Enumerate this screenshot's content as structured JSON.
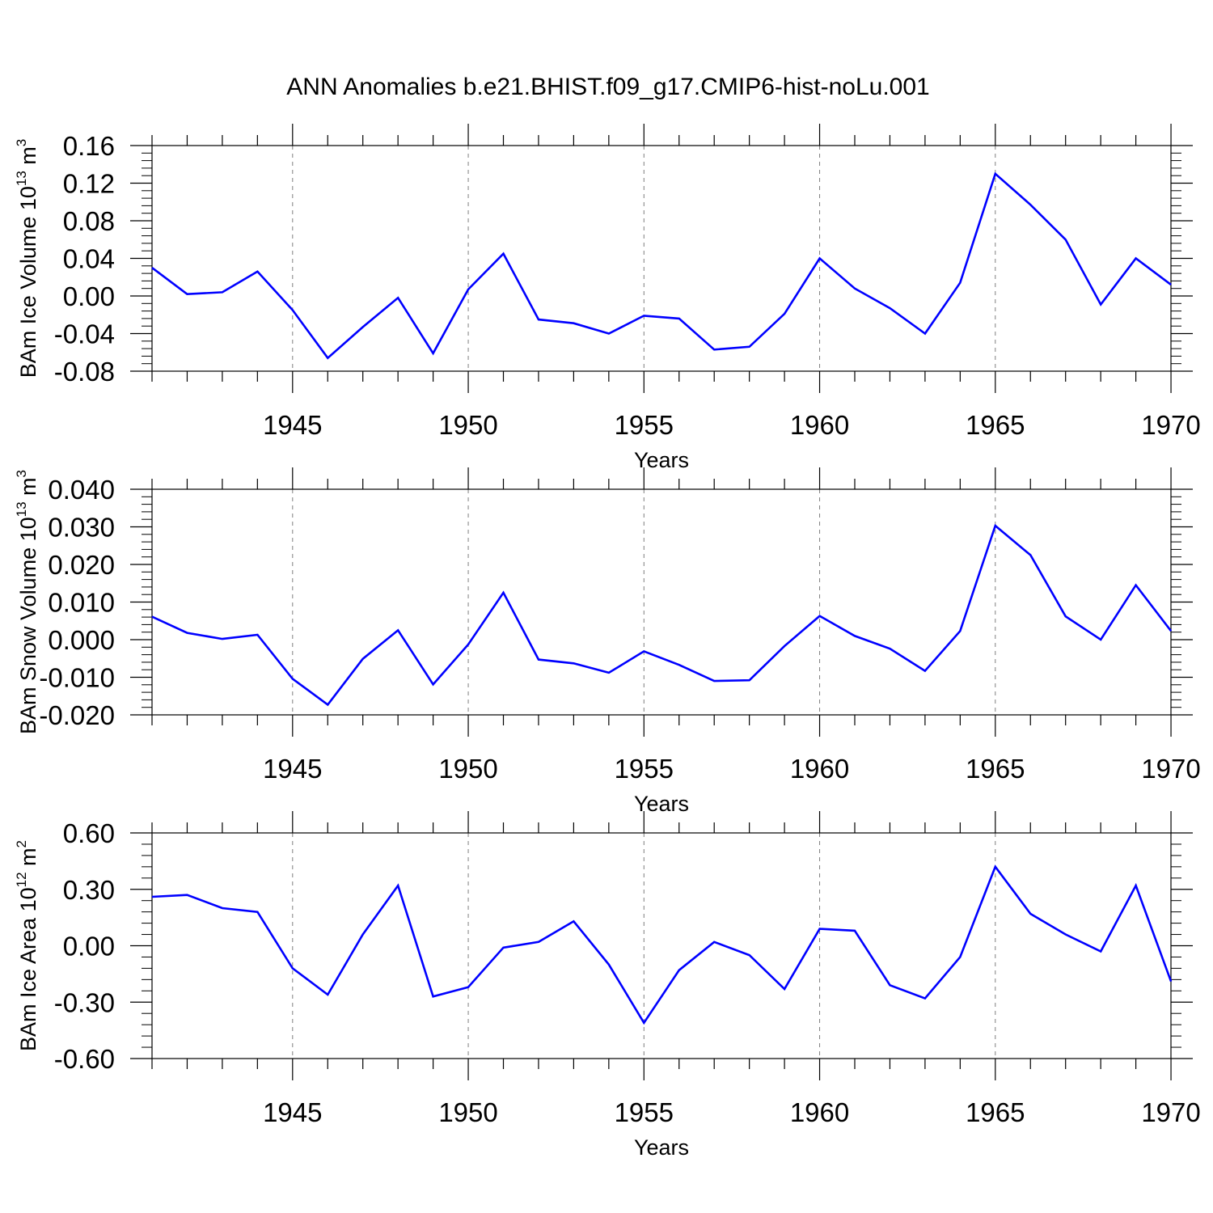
{
  "title": "ANN Anomalies b.e21.BHIST.f09_g17.CMIP6-hist-noLu.001",
  "colors": {
    "line": "#0000ff",
    "axis": "#000000",
    "grid": "#7f7f7f"
  },
  "chart_data": [
    {
      "type": "line",
      "ylabel": {
        "main": "BAm Ice Volume 10",
        "sup": "13",
        "unit": " m",
        "unit_sup": "3"
      },
      "xlabel": "Years",
      "xlim": [
        1941,
        1970
      ],
      "ylim": [
        -0.08,
        0.16
      ],
      "x_ticks": [
        1945,
        1950,
        1955,
        1960,
        1965,
        1970
      ],
      "y_ticks": [
        -0.08,
        -0.04,
        0.0,
        0.04,
        0.08,
        0.12,
        0.16
      ],
      "y_tick_labels": [
        "-0.08",
        "-0.04",
        "0.00",
        "0.04",
        "0.08",
        "0.12",
        "0.16"
      ],
      "grid": "vertical dashed at major x ticks",
      "x": [
        1941,
        1942,
        1943,
        1944,
        1945,
        1946,
        1947,
        1948,
        1949,
        1950,
        1951,
        1952,
        1953,
        1954,
        1955,
        1956,
        1957,
        1958,
        1959,
        1960,
        1961,
        1962,
        1963,
        1964,
        1965,
        1966,
        1967,
        1968,
        1969,
        1970
      ],
      "values": [
        0.03,
        0.002,
        0.004,
        0.026,
        -0.015,
        -0.066,
        -0.033,
        -0.002,
        -0.061,
        0.007,
        0.045,
        -0.025,
        -0.029,
        -0.04,
        -0.021,
        -0.024,
        -0.057,
        -0.054,
        -0.019,
        0.04,
        0.008,
        -0.013,
        -0.04,
        0.014,
        0.13,
        0.097,
        0.06,
        -0.009,
        0.04,
        0.012
      ]
    },
    {
      "type": "line",
      "ylabel": {
        "main": "BAm Snow Volume 10",
        "sup": "13",
        "unit": " m",
        "unit_sup": "3"
      },
      "xlabel": "Years",
      "xlim": [
        1941,
        1970
      ],
      "ylim": [
        -0.02,
        0.04
      ],
      "x_ticks": [
        1945,
        1950,
        1955,
        1960,
        1965,
        1970
      ],
      "y_ticks": [
        -0.02,
        -0.01,
        0.0,
        0.01,
        0.02,
        0.03,
        0.04
      ],
      "y_tick_labels": [
        "-0.020",
        "-0.010",
        "0.000",
        "0.010",
        "0.020",
        "0.030",
        "0.040"
      ],
      "grid": "vertical dashed at major x ticks",
      "x": [
        1941,
        1942,
        1943,
        1944,
        1945,
        1946,
        1947,
        1948,
        1949,
        1950,
        1951,
        1952,
        1953,
        1954,
        1955,
        1956,
        1957,
        1958,
        1959,
        1960,
        1961,
        1962,
        1963,
        1964,
        1965,
        1966,
        1967,
        1968,
        1969,
        1970
      ],
      "values": [
        0.0061,
        0.0018,
        0.0002,
        0.0013,
        -0.0104,
        -0.0173,
        -0.0051,
        0.0025,
        -0.0119,
        -0.0013,
        0.0125,
        -0.0053,
        -0.0063,
        -0.0088,
        -0.0031,
        -0.0067,
        -0.011,
        -0.0108,
        -0.0017,
        0.0063,
        0.001,
        -0.0024,
        -0.0083,
        0.0023,
        0.0303,
        0.0225,
        0.0062,
        0.0,
        0.0145,
        0.0023
      ]
    },
    {
      "type": "line",
      "ylabel": {
        "main": "BAm Ice Area 10",
        "sup": "12",
        "unit": " m",
        "unit_sup": "2"
      },
      "xlabel": "Years",
      "xlim": [
        1941,
        1970
      ],
      "ylim": [
        -0.6,
        0.6
      ],
      "x_ticks": [
        1945,
        1950,
        1955,
        1960,
        1965,
        1970
      ],
      "y_ticks": [
        -0.6,
        -0.3,
        0.0,
        0.3,
        0.6
      ],
      "y_tick_labels": [
        "-0.60",
        "-0.30",
        "0.00",
        "0.30",
        "0.60"
      ],
      "grid": "vertical dashed at major x ticks",
      "x": [
        1941,
        1942,
        1943,
        1944,
        1945,
        1946,
        1947,
        1948,
        1949,
        1950,
        1951,
        1952,
        1953,
        1954,
        1955,
        1956,
        1957,
        1958,
        1959,
        1960,
        1961,
        1962,
        1963,
        1964,
        1965,
        1966,
        1967,
        1968,
        1969,
        1970
      ],
      "values": [
        0.26,
        0.27,
        0.2,
        0.18,
        -0.12,
        -0.26,
        0.06,
        0.32,
        -0.27,
        -0.22,
        -0.01,
        0.02,
        0.13,
        -0.1,
        -0.41,
        -0.13,
        0.02,
        -0.05,
        -0.23,
        0.09,
        0.08,
        -0.21,
        -0.28,
        -0.06,
        0.42,
        0.17,
        0.06,
        -0.03,
        0.32,
        -0.19
      ]
    }
  ]
}
